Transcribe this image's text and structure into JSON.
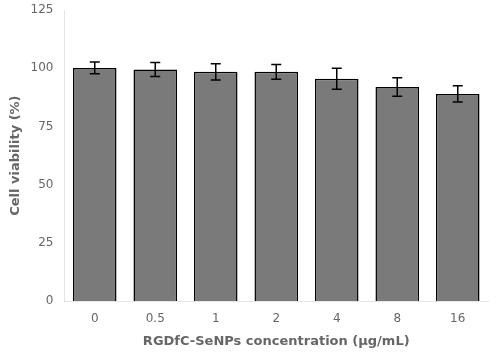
{
  "chart_data": {
    "type": "bar",
    "categories": [
      "0",
      "0.5",
      "1",
      "2",
      "4",
      "8",
      "16"
    ],
    "values": [
      100.2,
      99.5,
      98.5,
      98.5,
      95.5,
      92.0,
      89.0
    ],
    "errors": [
      2.5,
      3.0,
      3.5,
      3.2,
      4.5,
      4.0,
      3.5
    ],
    "color": "#7a7a7a",
    "ylabel": "Cell viability (%)",
    "xlabel": "RGDfC-SeNPs concentration (µg/mL)",
    "ylim": [
      0,
      125
    ],
    "yticks": [
      0,
      25,
      50,
      75,
      100,
      125
    ],
    "grid": false
  }
}
